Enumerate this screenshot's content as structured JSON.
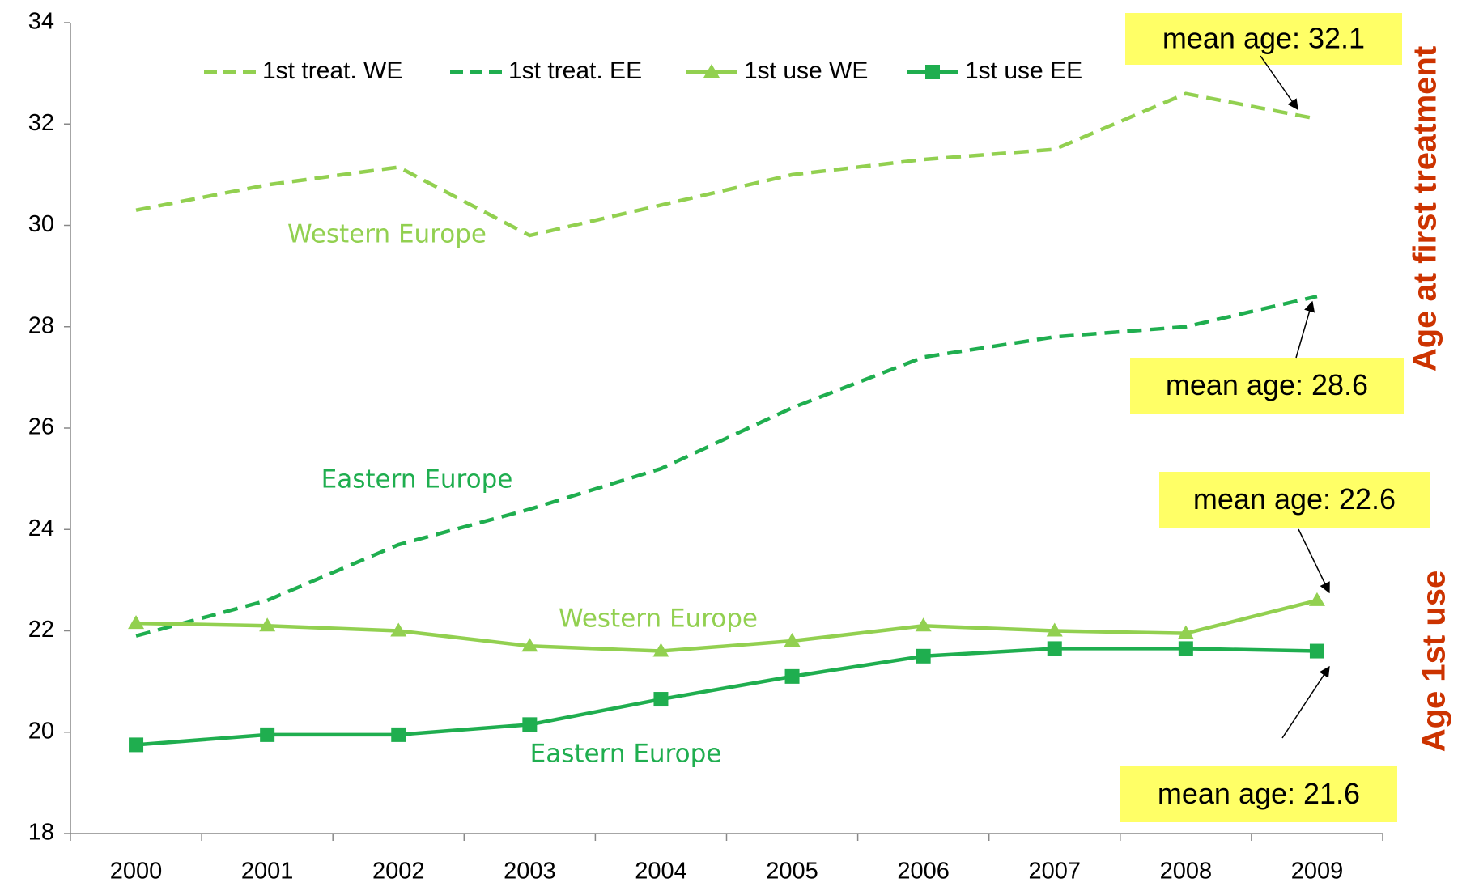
{
  "chart_data": {
    "type": "line",
    "categories": [
      "2000",
      "2001",
      "2002",
      "2003",
      "2004",
      "2005",
      "2006",
      "2007",
      "2008",
      "2009"
    ],
    "series": [
      {
        "name": "1st treat. WE",
        "color": "#92d050",
        "dash": true,
        "marker": "none",
        "values": [
          30.3,
          30.8,
          31.15,
          29.8,
          30.4,
          31.0,
          31.3,
          31.5,
          32.6,
          32.1
        ]
      },
      {
        "name": "1st treat. EE",
        "color": "#1fae4f",
        "dash": true,
        "marker": "none",
        "values": [
          21.9,
          22.6,
          23.7,
          24.4,
          25.2,
          26.4,
          27.4,
          27.8,
          28.0,
          28.6
        ]
      },
      {
        "name": "1st use WE",
        "color": "#92d050",
        "dash": false,
        "marker": "triangle",
        "values": [
          22.15,
          22.1,
          22.0,
          21.7,
          21.6,
          21.8,
          22.1,
          22.0,
          21.95,
          22.6
        ]
      },
      {
        "name": "1st use EE",
        "color": "#1fae4f",
        "dash": false,
        "marker": "square",
        "values": [
          19.75,
          19.95,
          19.95,
          20.15,
          20.65,
          21.1,
          21.5,
          21.65,
          21.65,
          21.6
        ]
      }
    ],
    "ylim": [
      18,
      34
    ],
    "yticks": [
      18,
      20,
      22,
      24,
      26,
      28,
      30,
      32,
      34
    ],
    "annotations": [
      "mean age: 32.1",
      "mean age: 28.6",
      "mean age: 22.6",
      "mean age: 21.6"
    ],
    "region_labels": [
      "Western Europe",
      "Eastern Europe",
      "Western Europe",
      "Eastern Europe"
    ],
    "side_labels": [
      "Age at first treatment",
      "Age 1st use"
    ],
    "legend": "top"
  }
}
